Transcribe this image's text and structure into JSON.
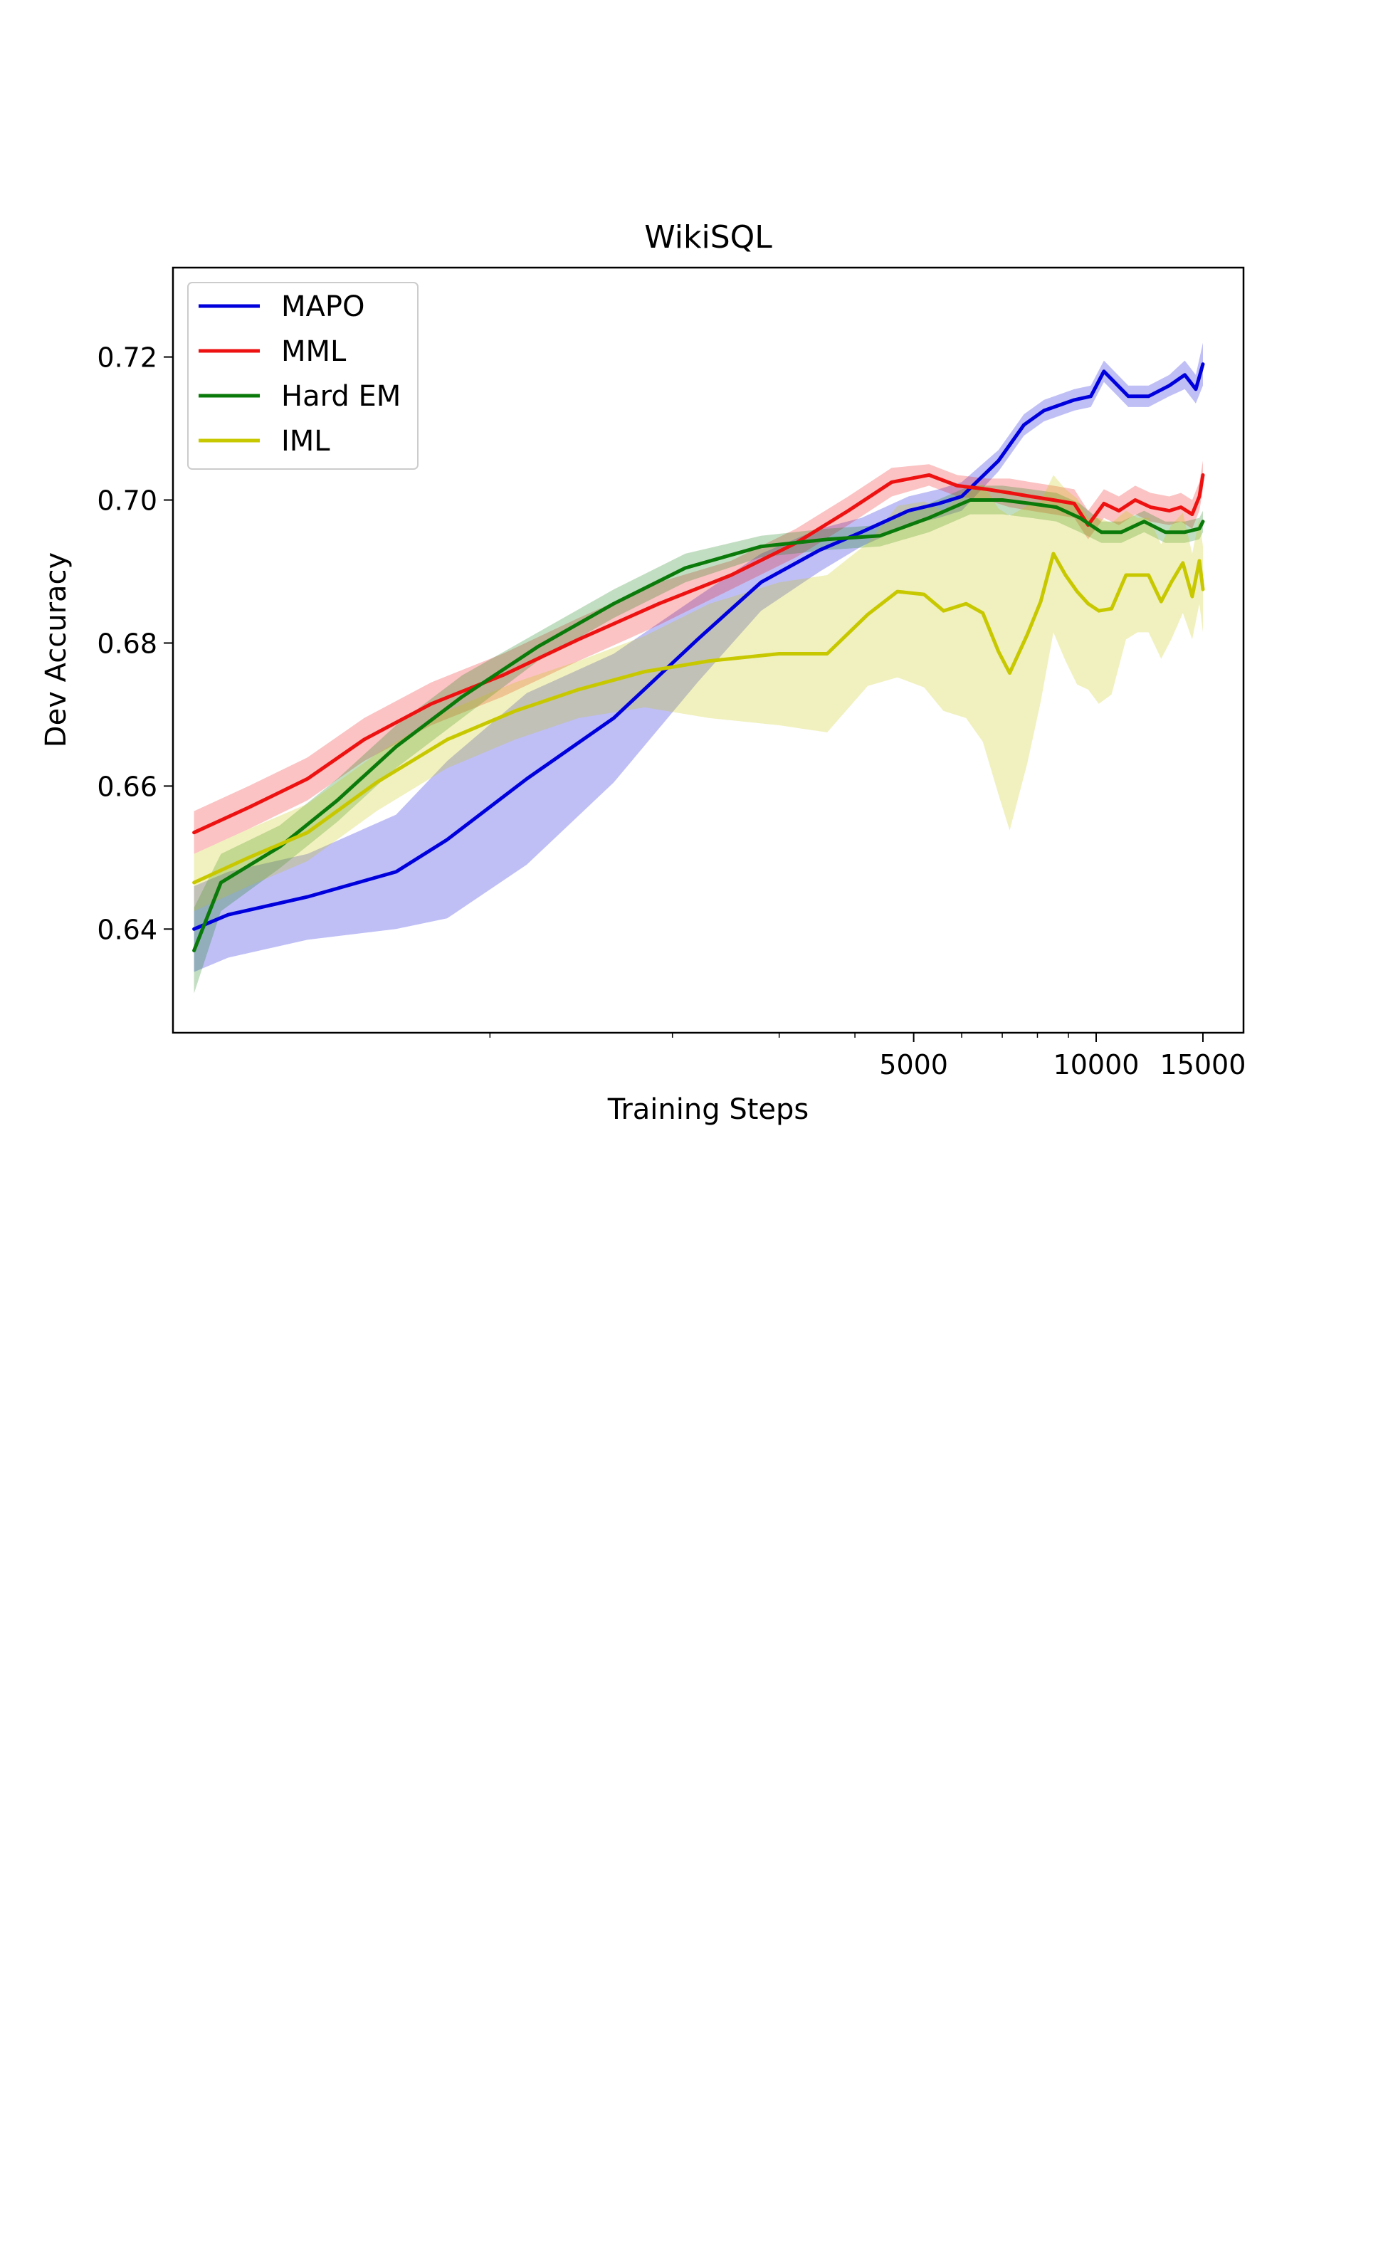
{
  "chart_data": {
    "type": "line",
    "title": "WikiSQL",
    "xlabel": "Training Steps",
    "ylabel": "Dev Accuracy",
    "x_scale": "log",
    "xlim": [
      300,
      17500
    ],
    "ylim": [
      0.6255,
      0.7325
    ],
    "xticks": [
      {
        "value": 5000,
        "label": "5000"
      },
      {
        "value": 10000,
        "label": "10000"
      },
      {
        "value": 15000,
        "label": "15000"
      }
    ],
    "xminor": [
      1000,
      2000,
      3000,
      4000,
      6000,
      7000,
      8000,
      9000
    ],
    "yticks": [
      {
        "value": 0.64,
        "label": "0.64"
      },
      {
        "value": 0.66,
        "label": "0.66"
      },
      {
        "value": 0.68,
        "label": "0.68"
      },
      {
        "value": 0.7,
        "label": "0.70"
      },
      {
        "value": 0.72,
        "label": "0.72"
      }
    ],
    "legend_position": "top-left",
    "series": [
      {
        "name": "MAPO",
        "color": "#0000dd",
        "x": [
          325,
          370,
          500,
          700,
          850,
          1150,
          1600,
          2200,
          2800,
          3500,
          4100,
          4900,
          5500,
          6000,
          6900,
          7600,
          8200,
          9200,
          9800,
          10300,
          11300,
          12200,
          13200,
          14000,
          14600,
          15000
        ],
        "y": [
          0.64,
          0.642,
          0.6445,
          0.648,
          0.6525,
          0.661,
          0.6695,
          0.6805,
          0.6885,
          0.693,
          0.6955,
          0.6985,
          0.6995,
          0.7005,
          0.7055,
          0.7105,
          0.7125,
          0.714,
          0.7145,
          0.718,
          0.7145,
          0.7145,
          0.716,
          0.7175,
          0.7155,
          0.719
        ],
        "spread": [
          0.006,
          0.006,
          0.006,
          0.008,
          0.011,
          0.012,
          0.009,
          0.006,
          0.004,
          0.003,
          0.002,
          0.002,
          0.002,
          0.002,
          0.0015,
          0.0015,
          0.0015,
          0.0015,
          0.0015,
          0.0015,
          0.0015,
          0.0015,
          0.0015,
          0.002,
          0.002,
          0.003
        ]
      },
      {
        "name": "MML",
        "color": "#ee1111",
        "x": [
          325,
          400,
          500,
          620,
          800,
          1050,
          1400,
          1900,
          2500,
          3200,
          3900,
          4600,
          5300,
          5900,
          6600,
          7200,
          7800,
          8500,
          9200,
          9700,
          10300,
          10900,
          11600,
          12300,
          13200,
          13800,
          14400,
          14800,
          15000
        ],
        "y": [
          0.6535,
          0.657,
          0.661,
          0.6665,
          0.6715,
          0.6755,
          0.6805,
          0.6855,
          0.6895,
          0.694,
          0.6985,
          0.7025,
          0.7035,
          0.702,
          0.7015,
          0.701,
          0.7005,
          0.7,
          0.6995,
          0.6965,
          0.6995,
          0.6985,
          0.7,
          0.699,
          0.6985,
          0.699,
          0.698,
          0.7005,
          0.7035
        ],
        "spread": [
          0.003,
          0.003,
          0.003,
          0.003,
          0.003,
          0.003,
          0.003,
          0.003,
          0.002,
          0.002,
          0.002,
          0.002,
          0.0015,
          0.0015,
          0.0015,
          0.002,
          0.002,
          0.002,
          0.002,
          0.002,
          0.002,
          0.002,
          0.002,
          0.002,
          0.002,
          0.002,
          0.002,
          0.002,
          0.002
        ]
      },
      {
        "name": "Hard EM",
        "color": "#0a7a0a",
        "x": [
          325,
          360,
          450,
          560,
          700,
          900,
          1200,
          1600,
          2100,
          2800,
          3600,
          4400,
          5300,
          6200,
          7000,
          7800,
          8600,
          9400,
          10200,
          11000,
          12000,
          13000,
          14000,
          14800,
          15000
        ],
        "y": [
          0.637,
          0.6465,
          0.6515,
          0.658,
          0.6655,
          0.6725,
          0.6795,
          0.6855,
          0.6905,
          0.6935,
          0.6945,
          0.695,
          0.6975,
          0.7,
          0.7,
          0.6995,
          0.699,
          0.6975,
          0.6955,
          0.6955,
          0.697,
          0.6955,
          0.6955,
          0.696,
          0.697
        ],
        "spread": [
          0.006,
          0.004,
          0.003,
          0.003,
          0.003,
          0.003,
          0.002,
          0.002,
          0.002,
          0.0015,
          0.0015,
          0.0015,
          0.002,
          0.002,
          0.002,
          0.002,
          0.002,
          0.002,
          0.0015,
          0.0015,
          0.0015,
          0.0015,
          0.0015,
          0.0015,
          0.0015
        ]
      },
      {
        "name": "IML",
        "color": "#c8c800",
        "x": [
          325,
          400,
          500,
          650,
          850,
          1100,
          1400,
          1800,
          2300,
          3000,
          3600,
          4200,
          4700,
          5200,
          5600,
          6100,
          6500,
          6900,
          7200,
          7700,
          8100,
          8500,
          8900,
          9300,
          9700,
          10100,
          10600,
          11200,
          11700,
          12200,
          12800,
          13300,
          13900,
          14400,
          14800,
          15000
        ],
        "y": [
          0.6465,
          0.65,
          0.6535,
          0.6605,
          0.6665,
          0.6705,
          0.6735,
          0.676,
          0.6775,
          0.6785,
          0.6785,
          0.684,
          0.6872,
          0.6868,
          0.6845,
          0.6855,
          0.6842,
          0.6788,
          0.6758,
          0.6812,
          0.6858,
          0.6925,
          0.6895,
          0.6872,
          0.6855,
          0.6845,
          0.6848,
          0.6895,
          0.6895,
          0.6895,
          0.6858,
          0.6885,
          0.6912,
          0.6865,
          0.6915,
          0.6875
        ],
        "spread": [
          0.004,
          0.004,
          0.004,
          0.004,
          0.004,
          0.004,
          0.004,
          0.005,
          0.008,
          0.01,
          0.011,
          0.01,
          0.012,
          0.013,
          0.014,
          0.016,
          0.018,
          0.02,
          0.022,
          0.018,
          0.014,
          0.011,
          0.012,
          0.013,
          0.012,
          0.013,
          0.012,
          0.009,
          0.008,
          0.008,
          0.008,
          0.008,
          0.007,
          0.006,
          0.006,
          0.006
        ]
      }
    ]
  }
}
